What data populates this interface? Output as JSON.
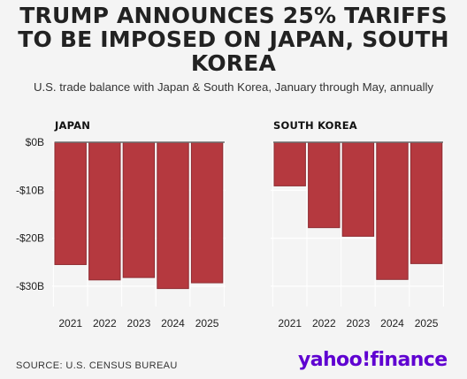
{
  "headline": "TRUMP ANNOUNCES 25% TARIFFS TO BE IMPOSED ON JAPAN, SOUTH KOREA",
  "subtitle": "U.S. trade balance with Japan & South Korea, January through May, annually",
  "source": "SOURCE: U.S. CENSUS BUREAU",
  "logo_text": "yahoo!finance",
  "colors": {
    "bar": "#b5393f",
    "background": "#f4f4f4",
    "grid": "#ffffff",
    "logo": "#5f01d1"
  },
  "chart_data": [
    {
      "type": "bar",
      "title": "JAPAN",
      "categories": [
        "2021",
        "2022",
        "2023",
        "2024",
        "2025"
      ],
      "values": [
        -25.5,
        -28.7,
        -28.2,
        -30.5,
        -29.3
      ],
      "y_ticks": [
        0,
        -10,
        -20,
        -30
      ],
      "y_tick_labels": [
        "$0B",
        "-$10B",
        "-$20B",
        "-$30B"
      ],
      "ylim": [
        -35,
        0
      ],
      "grid": true
    },
    {
      "type": "bar",
      "title": "SOUTH KOREA",
      "categories": [
        "2021",
        "2022",
        "2023",
        "2024",
        "2025"
      ],
      "values": [
        -9.1,
        -17.8,
        -19.6,
        -28.6,
        -25.3
      ],
      "y_ticks": [
        0,
        -10,
        -20,
        -30
      ],
      "ylim": [
        -35,
        0
      ],
      "grid": true
    }
  ]
}
